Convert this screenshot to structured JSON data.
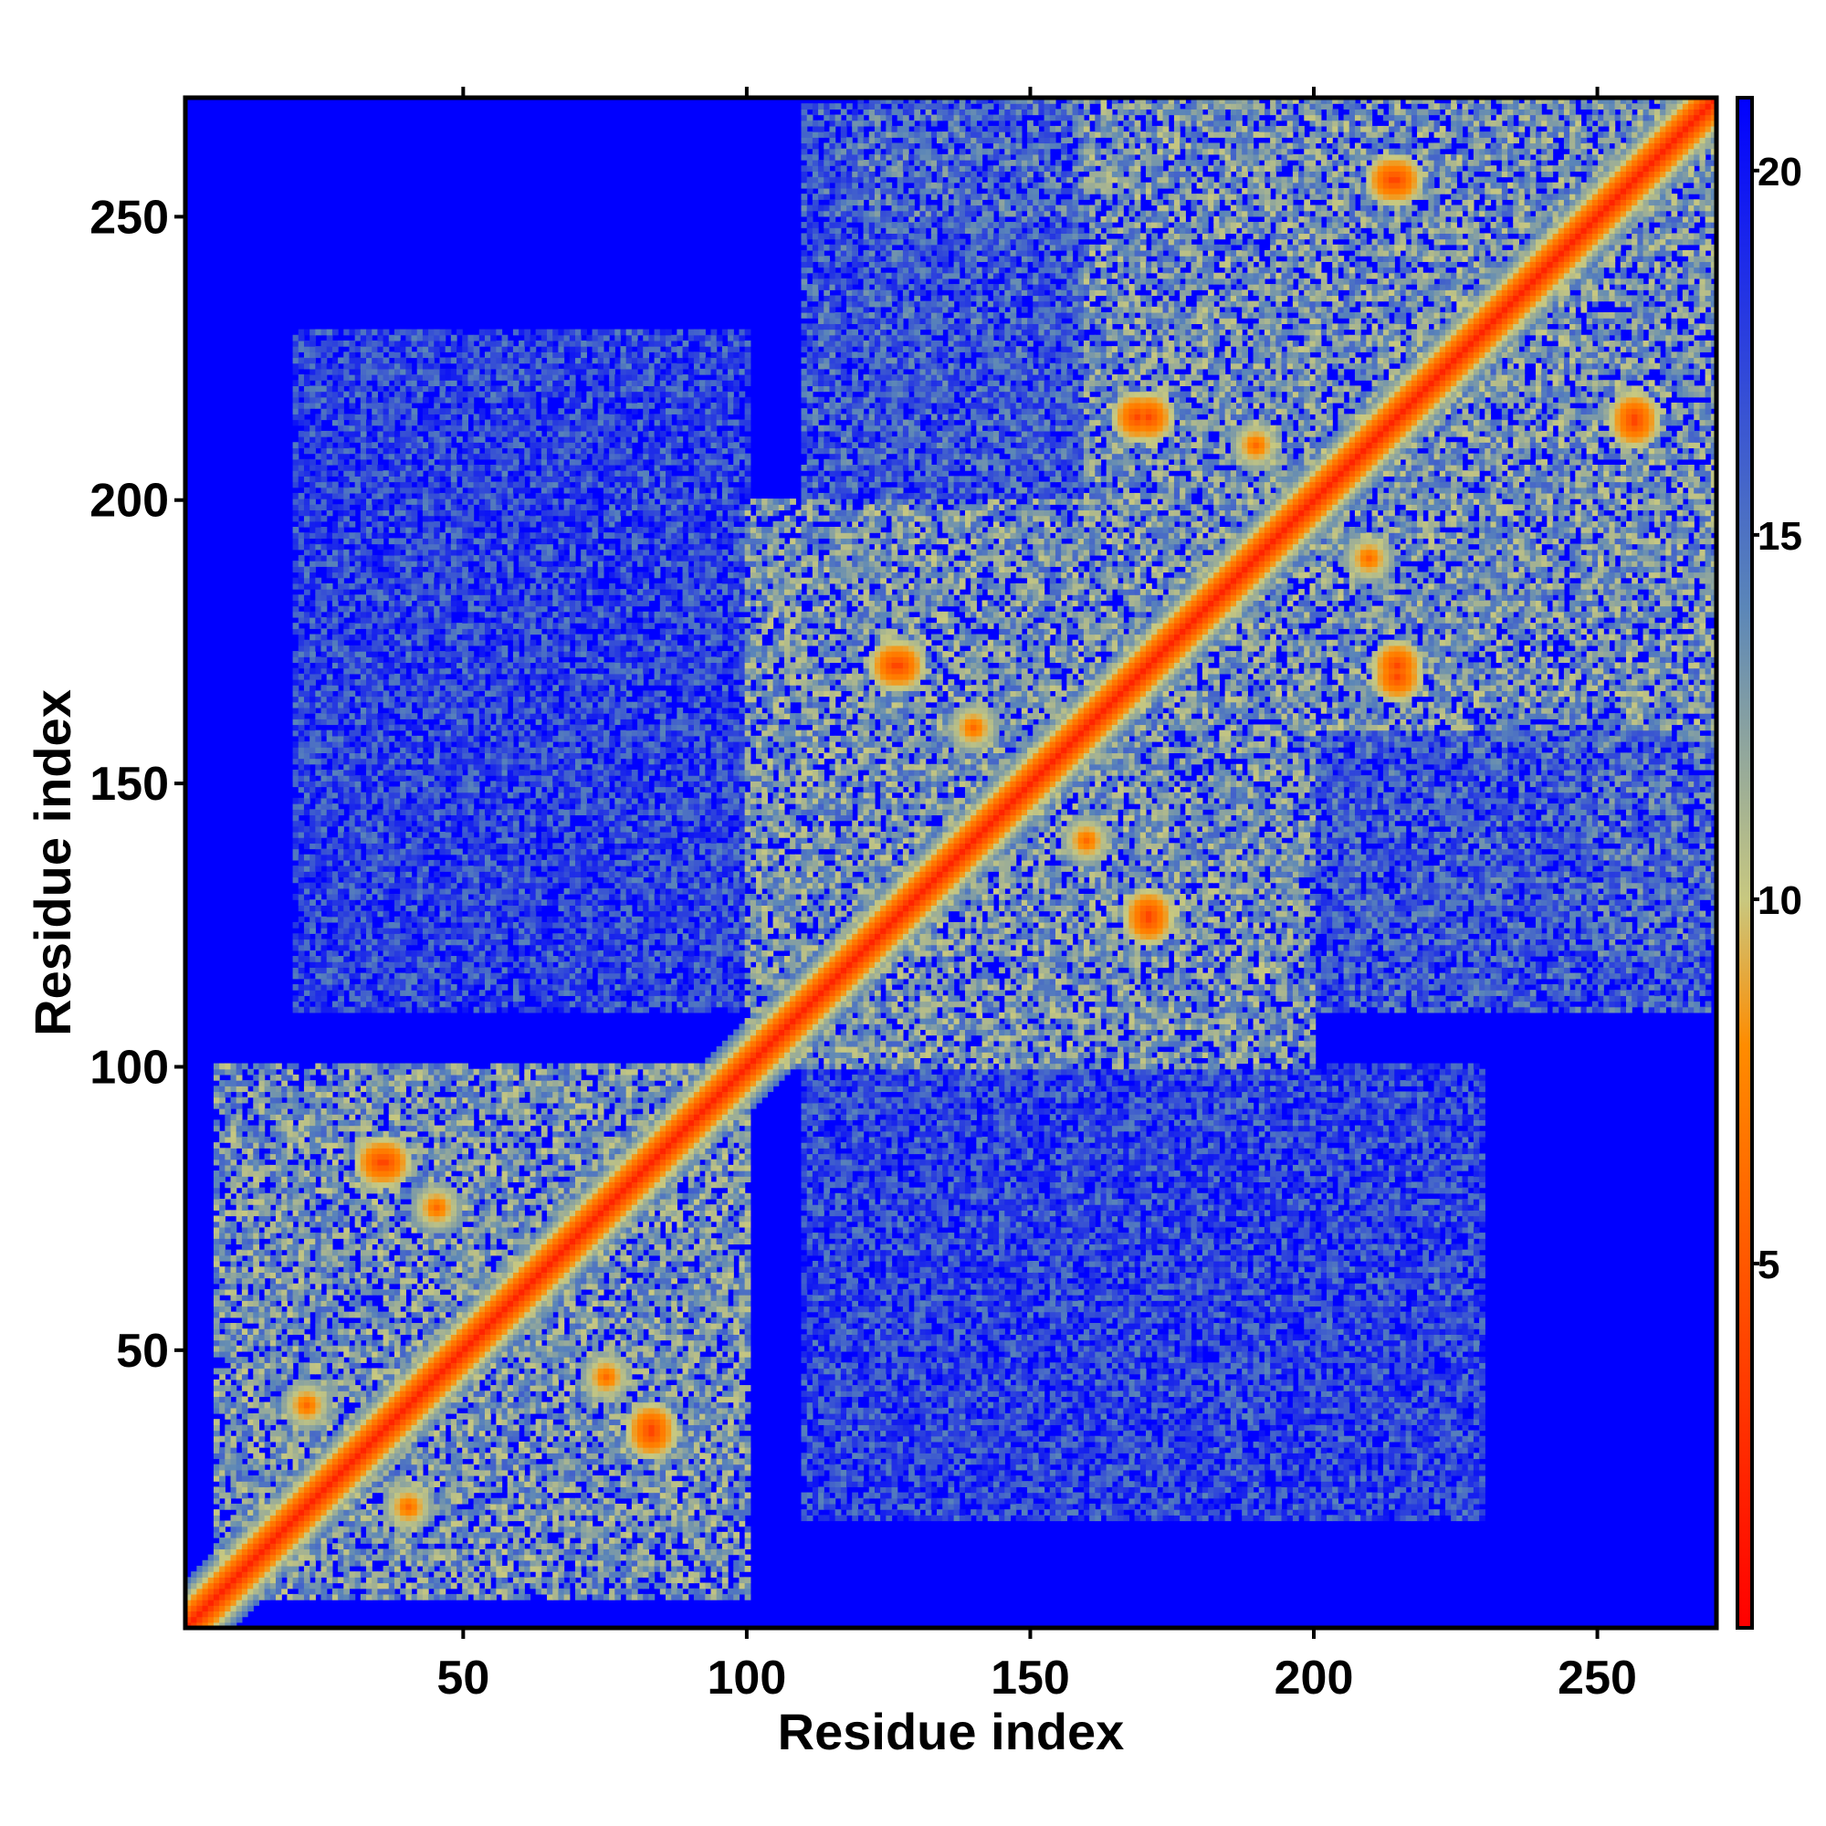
{
  "chart_data": {
    "type": "heatmap",
    "xlabel": "Residue index",
    "ylabel": "Residue index",
    "n_residues": 271,
    "xlim": [
      1,
      271
    ],
    "ylim": [
      1,
      271
    ],
    "x_ticks": [
      50,
      100,
      150,
      200,
      250
    ],
    "y_ticks": [
      50,
      100,
      150,
      200,
      250
    ],
    "colorbar": {
      "ticks": [
        5,
        10,
        15,
        20
      ],
      "range": [
        0,
        21
      ],
      "colors": [
        "#ff0000",
        "#ff8c00",
        "#c8c880",
        "#5b86b8",
        "#0000ff"
      ],
      "stops": [
        0,
        8,
        10,
        14,
        21
      ]
    },
    "background_value": 21,
    "diagonal": {
      "band_width": 8,
      "core_value": 2
    },
    "contact_blocks": [
      {
        "x": [
          6,
          100
        ],
        "y": [
          6,
          100
        ],
        "value": 13
      },
      {
        "x": [
          100,
          200
        ],
        "y": [
          100,
          200
        ],
        "value": 13
      },
      {
        "x": [
          160,
          271
        ],
        "y": [
          160,
          271
        ],
        "value": 13
      },
      {
        "x": [
          110,
          200
        ],
        "y": [
          195,
          250
        ],
        "value": 16
      },
      {
        "x": [
          200,
          270
        ],
        "y": [
          110,
          190
        ],
        "value": 16
      },
      {
        "x": [
          20,
          100
        ],
        "y": [
          110,
          230
        ],
        "value": 17
      },
      {
        "x": [
          110,
          230
        ],
        "y": [
          20,
          100
        ],
        "value": 17
      },
      {
        "x": [
          120,
          270
        ],
        "y": [
          250,
          271
        ],
        "value": 15
      }
    ],
    "hotspots": [
      {
        "x": 35,
        "y": 83,
        "value": 4
      },
      {
        "x": 83,
        "y": 36,
        "value": 4
      },
      {
        "x": 126,
        "y": 171,
        "value": 4
      },
      {
        "x": 171,
        "y": 127,
        "value": 4
      },
      {
        "x": 169,
        "y": 215,
        "value": 4
      },
      {
        "x": 215,
        "y": 171,
        "value": 4
      },
      {
        "x": 214,
        "y": 257,
        "value": 4
      },
      {
        "x": 257,
        "y": 215,
        "value": 4
      },
      {
        "x": 22,
        "y": 40,
        "value": 6
      },
      {
        "x": 45,
        "y": 75,
        "value": 6
      },
      {
        "x": 140,
        "y": 160,
        "value": 6
      },
      {
        "x": 190,
        "y": 210,
        "value": 6
      }
    ]
  }
}
